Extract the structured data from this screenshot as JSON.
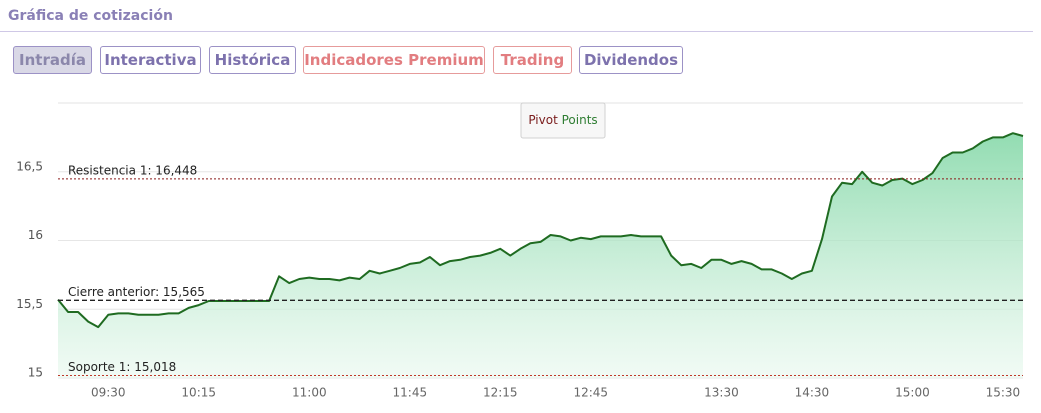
{
  "header": {
    "title": "Gráfica de cotización"
  },
  "tabs": [
    "Intradía",
    "Interactiva",
    "Histórica",
    "Indicadores Premium",
    "Trading",
    "Dividendos"
  ],
  "chart_data": {
    "type": "area",
    "pivot_points": [
      "Pivot",
      "Points"
    ],
    "categories": [
      null,
      null,
      null,
      null,
      null,
      "09:30",
      null,
      null,
      null,
      null,
      null,
      null,
      null,
      null,
      "10:15",
      null,
      null,
      null,
      null,
      null,
      null,
      null,
      null,
      null,
      null,
      "11:00",
      null,
      null,
      null,
      null,
      null,
      null,
      null,
      null,
      null,
      "11:45",
      null,
      null,
      null,
      null,
      null,
      null,
      null,
      null,
      "12:15",
      null,
      null,
      null,
      null,
      null,
      null,
      null,
      null,
      "12:45",
      null,
      null,
      null,
      null,
      null,
      null,
      null,
      null,
      null,
      null,
      null,
      null,
      "13:30",
      null,
      null,
      null,
      null,
      null,
      null,
      null,
      null,
      "14:30",
      null,
      null,
      null,
      null,
      null,
      null,
      null,
      null,
      null,
      "15:00",
      null,
      null,
      null,
      null,
      null,
      null,
      null,
      null,
      "15:30",
      null,
      null
    ],
    "values": [
      15.57,
      15.48,
      15.48,
      15.41,
      15.37,
      15.46,
      15.47,
      15.47,
      15.46,
      15.46,
      15.46,
      15.47,
      15.47,
      15.51,
      15.53,
      15.56,
      15.56,
      15.56,
      15.56,
      15.56,
      15.56,
      15.56,
      15.74,
      15.69,
      15.72,
      15.73,
      15.72,
      15.72,
      15.71,
      15.73,
      15.72,
      15.78,
      15.76,
      15.78,
      15.8,
      15.83,
      15.84,
      15.88,
      15.82,
      15.85,
      15.86,
      15.88,
      15.89,
      15.91,
      15.94,
      15.89,
      15.94,
      15.98,
      15.99,
      16.04,
      16.03,
      16.0,
      16.02,
      16.01,
      16.03,
      16.03,
      16.03,
      16.04,
      16.03,
      16.03,
      16.03,
      15.89,
      15.82,
      15.83,
      15.8,
      15.86,
      15.86,
      15.83,
      15.85,
      15.83,
      15.79,
      15.79,
      15.76,
      15.72,
      15.76,
      15.78,
      16.01,
      16.32,
      16.42,
      16.41,
      16.5,
      16.42,
      16.4,
      16.44,
      16.45,
      16.41,
      16.44,
      16.49,
      16.6,
      16.64,
      16.64,
      16.67,
      16.72,
      16.75,
      16.75,
      16.78,
      16.76
    ],
    "color": "#1f6b21",
    "ylim": [
      15,
      17
    ],
    "yticks": [
      15,
      {
        "value": 15.5,
        "label": "15,5"
      },
      16,
      {
        "value": 16.5,
        "label": "16,5"
      }
    ],
    "grid": true,
    "reference_lines": [
      {
        "value": 16.448,
        "label": "Resistencia 1: 16,448",
        "color": "#8b1a1a",
        "style": "dotted"
      },
      {
        "value": 15.565,
        "label": "Cierre anterior: 15,565",
        "color": "#222222",
        "style": "dashed"
      },
      {
        "value": 15.018,
        "label": "Soporte 1: 15,018",
        "color": "#c0392b",
        "style": "dotted"
      }
    ]
  }
}
